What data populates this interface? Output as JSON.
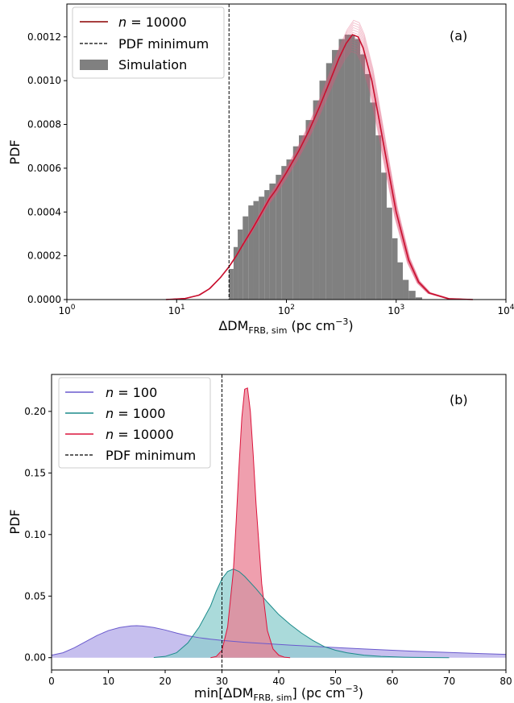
{
  "chart_data": [
    {
      "type": "line",
      "panel_label": "(a)",
      "xscale": "log",
      "xlabel_main": "ΔDM",
      "xlabel_sub": "FRB, sim",
      "xlabel_units": " (pc cm",
      "xlabel_exp": "−3",
      "xlabel_close": ")",
      "ylabel": "PDF",
      "xlim": [
        1,
        10000
      ],
      "ylim": [
        0,
        0.00135
      ],
      "x_ticks": [
        "10",
        "10",
        "10",
        "10",
        "10"
      ],
      "x_tick_exps": [
        "0",
        "1",
        "2",
        "3",
        "4"
      ],
      "x_tick_values": [
        1,
        10,
        100,
        1000,
        10000
      ],
      "y_ticks": [
        "0.0000",
        "0.0002",
        "0.0004",
        "0.0006",
        "0.0008",
        "0.0010",
        "0.0012"
      ],
      "y_tick_values": [
        0,
        0.0002,
        0.0004,
        0.0006,
        0.0008,
        0.001,
        0.0012
      ],
      "pdf_minimum_x": 30,
      "legend": [
        {
          "prefix": "n",
          "label": " = 10000",
          "style": "line",
          "color": "#8b0000"
        },
        {
          "label": "PDF minimum",
          "style": "dashed",
          "color": "#000000"
        },
        {
          "label": "Simulation",
          "style": "patch",
          "color": "#808080"
        }
      ],
      "series": [
        {
          "name": "n = 10000",
          "color": "#c8102e",
          "x": [
            8,
            12,
            16,
            20,
            25,
            30,
            35,
            40,
            50,
            60,
            70,
            80,
            100,
            130,
            160,
            200,
            250,
            300,
            350,
            400,
            450,
            500,
            600,
            700,
            800,
            1000,
            1300,
            1600,
            2000,
            3000,
            5000
          ],
          "y": [
            0,
            5e-06,
            2e-05,
            5e-05,
            0.0001,
            0.00015,
            0.0002,
            0.00025,
            0.00033,
            0.0004,
            0.00046,
            0.0005,
            0.00058,
            0.00068,
            0.00077,
            0.00088,
            0.001,
            0.0011,
            0.00117,
            0.00121,
            0.0012,
            0.00115,
            0.001,
            0.00082,
            0.00066,
            0.0004,
            0.00018,
            8e-05,
            3e-05,
            4e-06,
            0
          ]
        }
      ],
      "histogram": {
        "name": "Simulation",
        "color": "#808080",
        "x": [
          30,
          33,
          36,
          40,
          45,
          50,
          56,
          63,
          70,
          80,
          90,
          100,
          115,
          130,
          150,
          175,
          200,
          230,
          260,
          300,
          340,
          380,
          420,
          470,
          520,
          580,
          650,
          730,
          820,
          920,
          1030,
          1150,
          1300,
          1500
        ],
        "y": [
          0.00014,
          0.00024,
          0.00032,
          0.00038,
          0.00043,
          0.00045,
          0.00047,
          0.0005,
          0.00053,
          0.00057,
          0.00061,
          0.00064,
          0.0007,
          0.00075,
          0.00082,
          0.00091,
          0.001,
          0.00108,
          0.00114,
          0.00119,
          0.00121,
          0.00121,
          0.00119,
          0.00112,
          0.00103,
          0.0009,
          0.00075,
          0.00058,
          0.00042,
          0.00028,
          0.00017,
          9e-05,
          4e-05,
          1e-05
        ]
      }
    },
    {
      "type": "area",
      "panel_label": "(b)",
      "xlabel_main": "min[ΔDM",
      "xlabel_sub": "FRB, sim",
      "xlabel_units": "] (pc cm",
      "xlabel_exp": "−3",
      "xlabel_close": ")",
      "ylabel": "PDF",
      "xlim": [
        0,
        80
      ],
      "ylim": [
        -0.01,
        0.23
      ],
      "x_ticks": [
        "0",
        "10",
        "20",
        "30",
        "40",
        "50",
        "60",
        "70",
        "80"
      ],
      "x_tick_values": [
        0,
        10,
        20,
        30,
        40,
        50,
        60,
        70,
        80
      ],
      "y_ticks": [
        "0.00",
        "0.05",
        "0.10",
        "0.15",
        "0.20"
      ],
      "y_tick_values": [
        0,
        0.05,
        0.1,
        0.15,
        0.2
      ],
      "pdf_minimum_x": 30,
      "legend": [
        {
          "prefix": "n",
          "label": " = 100",
          "style": "line",
          "color": "#6a5acd"
        },
        {
          "prefix": "n",
          "label": " = 1000",
          "style": "line",
          "color": "#1b8a8a"
        },
        {
          "prefix": "n",
          "label": " = 10000",
          "style": "line",
          "color": "#dc143c"
        },
        {
          "label": "PDF minimum",
          "style": "dashed",
          "color": "#000000"
        }
      ],
      "series": [
        {
          "name": "n = 100",
          "color": "#6a5acd",
          "fill": "#b3a9e8",
          "x": [
            0,
            2,
            4,
            6,
            8,
            10,
            12,
            14,
            15,
            16,
            18,
            20,
            22,
            24,
            26,
            28,
            30,
            34,
            38,
            42,
            46,
            50,
            55,
            60,
            65,
            70,
            75,
            80
          ],
          "y": [
            0.002,
            0.004,
            0.008,
            0.013,
            0.018,
            0.022,
            0.0245,
            0.0258,
            0.026,
            0.0257,
            0.0245,
            0.0225,
            0.02,
            0.0178,
            0.0162,
            0.015,
            0.014,
            0.0125,
            0.0113,
            0.0102,
            0.0092,
            0.0082,
            0.0071,
            0.006,
            0.005,
            0.0042,
            0.0034,
            0.0027
          ]
        },
        {
          "name": "n = 1000",
          "color": "#1b8a8a",
          "fill": "#8ecece",
          "x": [
            18,
            20,
            22,
            24,
            26,
            28,
            29,
            30,
            31,
            32,
            33,
            34,
            36,
            38,
            40,
            42,
            44,
            46,
            48,
            50,
            52,
            55,
            58,
            62,
            66,
            70
          ],
          "y": [
            0.0001,
            0.001,
            0.004,
            0.012,
            0.025,
            0.042,
            0.054,
            0.064,
            0.07,
            0.072,
            0.07,
            0.066,
            0.056,
            0.045,
            0.035,
            0.027,
            0.02,
            0.014,
            0.009,
            0.006,
            0.004,
            0.002,
            0.001,
            0.0004,
            0.0001,
            0
          ]
        },
        {
          "name": "n = 10000",
          "color": "#dc143c",
          "fill": "#ea7f93",
          "x": [
            28,
            29,
            30,
            31,
            32,
            32.5,
            33,
            33.5,
            34,
            34.5,
            35,
            35.5,
            36,
            37,
            38,
            39,
            40,
            41,
            42
          ],
          "y": [
            0,
            0.001,
            0.006,
            0.025,
            0.07,
            0.11,
            0.155,
            0.195,
            0.218,
            0.219,
            0.2,
            0.165,
            0.125,
            0.06,
            0.022,
            0.007,
            0.002,
            0.0004,
            0
          ]
        }
      ]
    }
  ]
}
